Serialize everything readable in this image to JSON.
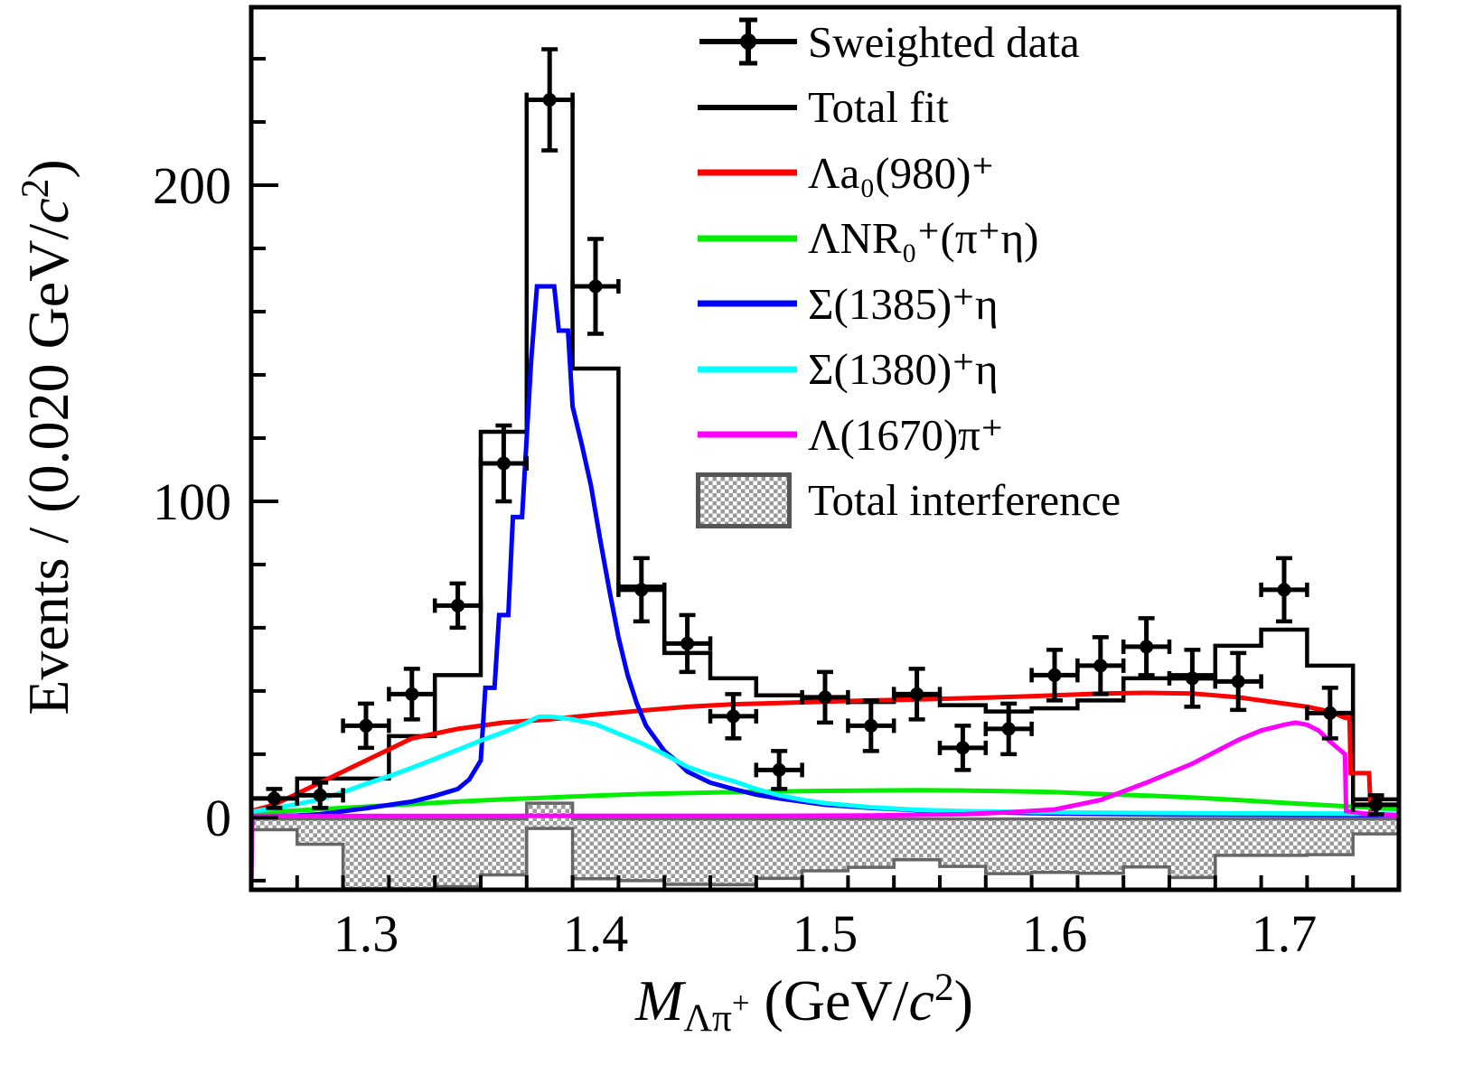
{
  "figure": {
    "legend": {
      "items": [
        {
          "label": "Sweighted data",
          "type": "data-marker",
          "color": "#000000"
        },
        {
          "label": "Total fit",
          "type": "line",
          "color": "#000000"
        },
        {
          "label": "Λa₀(980)⁺",
          "type": "line",
          "color": "#ff0000"
        },
        {
          "label": "ΛNR₀⁺(π⁺η)",
          "type": "line",
          "color": "#00ee00"
        },
        {
          "label": "Σ(1385)⁺η",
          "type": "line",
          "color": "#0000ff"
        },
        {
          "label": "Σ(1380)⁺η",
          "type": "line",
          "color": "#00ffff"
        },
        {
          "label": "Λ(1670)π⁺",
          "type": "line",
          "color": "#ff00ff"
        },
        {
          "label": "Total interference",
          "type": "hatched-box",
          "color": "#9a9a9a"
        }
      ]
    },
    "x_title": {
      "var": "M",
      "sub": "Λπ",
      "sub_sup": "+",
      "unit_pre": " (GeV/",
      "unit_c": "c",
      "unit_sup": "2",
      "unit_post": ")"
    },
    "y_title": {
      "pre": "Events / (0.020 GeV/",
      "c": "c",
      "sup": "2",
      "post": ")"
    }
  },
  "chart_data": {
    "type": "composite",
    "title": "",
    "xlabel": "M(Lambda pi+) (GeV/c2)",
    "ylabel": "Events / (0.020 GeV/c2)",
    "xlim": [
      1.25,
      1.75
    ],
    "ylim": [
      -22.9,
      256.3
    ],
    "grid": false,
    "legend_position": "top-right-inside",
    "bin_width": 0.02,
    "axes": {
      "x_major": [
        1.3,
        1.4,
        1.5,
        1.6,
        1.7
      ],
      "x_tick_labels": [
        "1.3",
        "1.4",
        "1.5",
        "1.6",
        "1.7"
      ],
      "x_minor_step": 0.02,
      "y_major": [
        0,
        100,
        200
      ],
      "y_tick_labels": [
        "0",
        "100",
        "200"
      ],
      "y_minor_step": 20
    },
    "bin_centers": [
      1.26,
      1.28,
      1.3,
      1.32,
      1.34,
      1.36,
      1.38,
      1.4,
      1.42,
      1.44,
      1.46,
      1.48,
      1.5,
      1.52,
      1.54,
      1.56,
      1.58,
      1.6,
      1.62,
      1.64,
      1.66,
      1.68,
      1.7,
      1.72,
      1.74
    ],
    "sweighted_data": {
      "y": [
        6,
        7,
        29,
        39,
        67,
        112,
        227,
        168,
        72,
        55,
        32,
        15,
        38,
        29,
        39,
        22,
        28,
        45,
        48,
        54,
        44,
        43,
        72,
        33,
        4
      ],
      "yerr": [
        3,
        4,
        7,
        8,
        7,
        12,
        16,
        15,
        10,
        9,
        7,
        6,
        8,
        8,
        8,
        7,
        8,
        8,
        9,
        9,
        9,
        9,
        10,
        8,
        3
      ],
      "xerr": 0.01
    },
    "total_fit": [
      6,
      12.3,
      12.3,
      25.7,
      45,
      122,
      227,
      142,
      73,
      52,
      44,
      38.6,
      37.1,
      36.5,
      38,
      35.5,
      33.5,
      34.5,
      37,
      44,
      45,
      54.3,
      59.4,
      48,
      5.7
    ],
    "interference": {
      "top": [
        -0.5,
        -0.5,
        -0.5,
        -0.5,
        -0.5,
        -0.5,
        4.5,
        -0.5,
        -0.5,
        -0.5,
        -0.5,
        -0.5,
        -0.5,
        -0.5,
        -0.5,
        -0.5,
        -0.5,
        -0.5,
        -0.5,
        -0.5,
        -0.5,
        -0.5,
        -0.5,
        -0.5,
        -0.5
      ],
      "bottom": [
        -3.9,
        -8.5,
        -22.5,
        -22.5,
        -21.9,
        -18.2,
        -3.5,
        -19.4,
        -20,
        -21.2,
        -21.3,
        -19.3,
        -16.9,
        -15.8,
        -13.4,
        -15.5,
        -17.8,
        -17.4,
        -17.7,
        -15.7,
        -19,
        -12,
        -12,
        -11.8,
        -5.2
      ],
      "fill": "gray-checker",
      "edge_color": "#666666"
    },
    "components": [
      {
        "name": "Lambda a0(980)+",
        "legend": "Λa₀(980)⁺",
        "color": "#ff0000",
        "points": [
          [
            1.25,
            2
          ],
          [
            1.26,
            4
          ],
          [
            1.27,
            7.5
          ],
          [
            1.28,
            11
          ],
          [
            1.29,
            14.5
          ],
          [
            1.3,
            18
          ],
          [
            1.31,
            21.5
          ],
          [
            1.32,
            25
          ],
          [
            1.33,
            26.5
          ],
          [
            1.34,
            28
          ],
          [
            1.36,
            30
          ],
          [
            1.38,
            31
          ],
          [
            1.4,
            32.5
          ],
          [
            1.42,
            33.8
          ],
          [
            1.44,
            35
          ],
          [
            1.46,
            35.8
          ],
          [
            1.48,
            36.2
          ],
          [
            1.5,
            36.6
          ],
          [
            1.52,
            37
          ],
          [
            1.54,
            37.3
          ],
          [
            1.56,
            37.7
          ],
          [
            1.58,
            38.1
          ],
          [
            1.6,
            38.6
          ],
          [
            1.62,
            39.2
          ],
          [
            1.64,
            39.4
          ],
          [
            1.66,
            39.2
          ],
          [
            1.68,
            38
          ],
          [
            1.7,
            36
          ],
          [
            1.71,
            35
          ],
          [
            1.72,
            33.5
          ],
          [
            1.7265,
            31.5
          ],
          [
            1.7285,
            31.5
          ],
          [
            1.729,
            14
          ],
          [
            1.737,
            14
          ],
          [
            1.7378,
            1
          ],
          [
            1.75,
            0.8
          ]
        ]
      },
      {
        "name": "Lambda NR0+(pi+ eta)",
        "legend": "ΛNR₀⁺(π⁺η)",
        "color": "#00ee00",
        "points": [
          [
            1.25,
            1.2
          ],
          [
            1.26,
            1.8
          ],
          [
            1.28,
            2.6
          ],
          [
            1.3,
            3.4
          ],
          [
            1.32,
            4.2
          ],
          [
            1.34,
            5.0
          ],
          [
            1.36,
            5.7
          ],
          [
            1.38,
            6.3
          ],
          [
            1.4,
            6.9
          ],
          [
            1.42,
            7.4
          ],
          [
            1.44,
            7.7
          ],
          [
            1.46,
            8.0
          ],
          [
            1.48,
            8.2
          ],
          [
            1.5,
            8.4
          ],
          [
            1.52,
            8.5
          ],
          [
            1.54,
            8.6
          ],
          [
            1.56,
            8.5
          ],
          [
            1.58,
            8.3
          ],
          [
            1.6,
            8.0
          ],
          [
            1.62,
            7.4
          ],
          [
            1.64,
            6.9
          ],
          [
            1.66,
            6.3
          ],
          [
            1.68,
            5.5
          ],
          [
            1.7,
            4.6
          ],
          [
            1.72,
            3.8
          ],
          [
            1.74,
            3.0
          ],
          [
            1.75,
            2.6
          ]
        ]
      },
      {
        "name": "Sigma(1385)+ eta",
        "legend": "Σ(1385)⁺η",
        "color": "#0000ff",
        "points": [
          [
            1.25,
            0.2
          ],
          [
            1.27,
            0.6
          ],
          [
            1.28,
            1.0
          ],
          [
            1.3,
            2.9
          ],
          [
            1.32,
            5.0
          ],
          [
            1.33,
            6.8
          ],
          [
            1.34,
            9.0
          ],
          [
            1.345,
            12
          ],
          [
            1.35,
            18
          ],
          [
            1.352,
            41
          ],
          [
            1.356,
            41
          ],
          [
            1.358,
            64
          ],
          [
            1.362,
            64
          ],
          [
            1.364,
            95
          ],
          [
            1.368,
            95
          ],
          [
            1.37,
            120
          ],
          [
            1.372,
            145
          ],
          [
            1.3745,
            168
          ],
          [
            1.382,
            168
          ],
          [
            1.384,
            154
          ],
          [
            1.388,
            154
          ],
          [
            1.39,
            130
          ],
          [
            1.394,
            118
          ],
          [
            1.398,
            105
          ],
          [
            1.402,
            88
          ],
          [
            1.406,
            72
          ],
          [
            1.41,
            57
          ],
          [
            1.414,
            45
          ],
          [
            1.418,
            36
          ],
          [
            1.422,
            29
          ],
          [
            1.426,
            25
          ],
          [
            1.43,
            21
          ],
          [
            1.435,
            18
          ],
          [
            1.44,
            14.5
          ],
          [
            1.45,
            11
          ],
          [
            1.46,
            9
          ],
          [
            1.47,
            7.2
          ],
          [
            1.48,
            6
          ],
          [
            1.5,
            4
          ],
          [
            1.52,
            3
          ],
          [
            1.54,
            2.3
          ],
          [
            1.56,
            1.8
          ],
          [
            1.6,
            1.2
          ],
          [
            1.65,
            0.9
          ],
          [
            1.7,
            0.8
          ],
          [
            1.75,
            0.7
          ]
        ]
      },
      {
        "name": "Sigma(1380)+ eta",
        "legend": "Σ(1380)⁺η",
        "color": "#00ffff",
        "points": [
          [
            1.25,
            1.8
          ],
          [
            1.26,
            2.9
          ],
          [
            1.27,
            4.2
          ],
          [
            1.28,
            5.7
          ],
          [
            1.29,
            8
          ],
          [
            1.3,
            10.6
          ],
          [
            1.31,
            13
          ],
          [
            1.32,
            15.7
          ],
          [
            1.33,
            18.5
          ],
          [
            1.34,
            21.4
          ],
          [
            1.35,
            24.3
          ],
          [
            1.36,
            27
          ],
          [
            1.37,
            30
          ],
          [
            1.375,
            31.8
          ],
          [
            1.38,
            31.9
          ],
          [
            1.385,
            31.5
          ],
          [
            1.39,
            31
          ],
          [
            1.4,
            29.5
          ],
          [
            1.41,
            26.5
          ],
          [
            1.42,
            23.5
          ],
          [
            1.43,
            20
          ],
          [
            1.44,
            16
          ],
          [
            1.45,
            13.5
          ],
          [
            1.46,
            11.5
          ],
          [
            1.47,
            9
          ],
          [
            1.48,
            7
          ],
          [
            1.49,
            5.6
          ],
          [
            1.5,
            4.5
          ],
          [
            1.52,
            3.2
          ],
          [
            1.54,
            2.4
          ],
          [
            1.56,
            2.0
          ],
          [
            1.58,
            1.8
          ],
          [
            1.6,
            1.6
          ],
          [
            1.64,
            1.4
          ],
          [
            1.68,
            1.3
          ],
          [
            1.72,
            1.2
          ],
          [
            1.75,
            1.1
          ]
        ]
      },
      {
        "name": "Lambda(1670) pi+",
        "legend": "Λ(1670)π⁺",
        "color": "#ff00ff",
        "points": [
          [
            1.25,
            -22.8
          ],
          [
            1.2505,
            0.45
          ],
          [
            1.3,
            0.45
          ],
          [
            1.4,
            0.5
          ],
          [
            1.48,
            0.5
          ],
          [
            1.52,
            0.6
          ],
          [
            1.56,
            1.0
          ],
          [
            1.58,
            1.6
          ],
          [
            1.6,
            2.5
          ],
          [
            1.62,
            5.5
          ],
          [
            1.64,
            11
          ],
          [
            1.66,
            17
          ],
          [
            1.68,
            24.5
          ],
          [
            1.69,
            27.5
          ],
          [
            1.7,
            29.3
          ],
          [
            1.705,
            30
          ],
          [
            1.71,
            29.3
          ],
          [
            1.715,
            27.5
          ],
          [
            1.72,
            24
          ],
          [
            1.7265,
            20
          ],
          [
            1.727,
            2
          ],
          [
            1.735,
            1.2
          ],
          [
            1.75,
            0.6
          ]
        ]
      }
    ]
  }
}
